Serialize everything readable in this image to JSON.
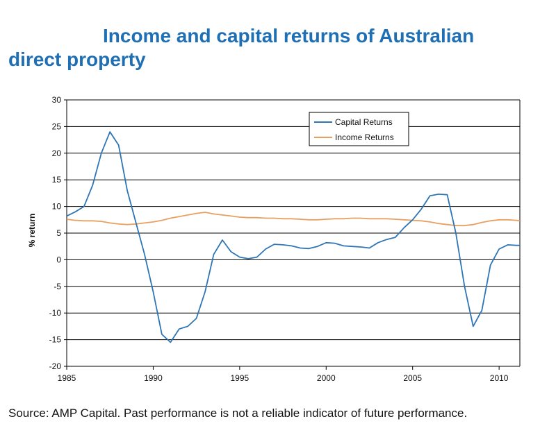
{
  "title_line1": "Income and capital returns of Australian",
  "title_line2": "direct property",
  "source": "Source: AMP Capital. Past performance is not a reliable indicator of future performance.",
  "colors": {
    "title": "#1f6fb5",
    "capital": "#2e75b6",
    "income": "#e8a060"
  },
  "chart_data": {
    "type": "line",
    "ylabel": "% return",
    "xlim": [
      1985,
      2011.2
    ],
    "ylim": [
      -20,
      30
    ],
    "y_ticks": [
      "30",
      "25",
      "20",
      "15",
      "10",
      "5",
      "0",
      "-5",
      "-10",
      "-15",
      "-20"
    ],
    "x_ticks": [
      "1985",
      "1990",
      "1995",
      "2000",
      "2005",
      "2010"
    ],
    "grid": "horizontal",
    "legend_position": "top-right",
    "series": [
      {
        "name": "Capital Returns",
        "color": "#2e75b6",
        "points": [
          [
            1985,
            8.2
          ],
          [
            1985.5,
            9
          ],
          [
            1986,
            10
          ],
          [
            1986.5,
            14
          ],
          [
            1987,
            20
          ],
          [
            1987.5,
            24
          ],
          [
            1988,
            21.5
          ],
          [
            1988.5,
            13
          ],
          [
            1989,
            7
          ],
          [
            1989.5,
            1
          ],
          [
            1990,
            -6
          ],
          [
            1990.5,
            -14
          ],
          [
            1991,
            -15.5
          ],
          [
            1991.5,
            -13
          ],
          [
            1992,
            -12.5
          ],
          [
            1992.5,
            -11
          ],
          [
            1993,
            -6
          ],
          [
            1993.5,
            1
          ],
          [
            1994,
            3.7
          ],
          [
            1994.5,
            1.5
          ],
          [
            1995,
            0.5
          ],
          [
            1995.5,
            0.2
          ],
          [
            1996,
            0.5
          ],
          [
            1996.5,
            2
          ],
          [
            1997,
            2.9
          ],
          [
            1997.5,
            2.8
          ],
          [
            1998,
            2.6
          ],
          [
            1998.5,
            2.2
          ],
          [
            1999,
            2.1
          ],
          [
            1999.5,
            2.5
          ],
          [
            2000,
            3.2
          ],
          [
            2000.5,
            3.1
          ],
          [
            2001,
            2.6
          ],
          [
            2001.5,
            2.5
          ],
          [
            2002,
            2.4
          ],
          [
            2002.5,
            2.2
          ],
          [
            2003,
            3.2
          ],
          [
            2003.5,
            3.8
          ],
          [
            2004,
            4.2
          ],
          [
            2004.5,
            6
          ],
          [
            2005,
            7.5
          ],
          [
            2005.5,
            9.5
          ],
          [
            2006,
            12
          ],
          [
            2006.5,
            12.3
          ],
          [
            2007,
            12.2
          ],
          [
            2007.5,
            5
          ],
          [
            2008,
            -5
          ],
          [
            2008.5,
            -12.5
          ],
          [
            2009,
            -9.5
          ],
          [
            2009.5,
            -1
          ],
          [
            2010,
            2
          ],
          [
            2010.5,
            2.8
          ],
          [
            2011,
            2.7
          ],
          [
            2011.2,
            2.7
          ]
        ]
      },
      {
        "name": "Income Returns",
        "color": "#e8a060",
        "points": [
          [
            1985,
            7.6
          ],
          [
            1985.5,
            7.4
          ],
          [
            1986,
            7.3
          ],
          [
            1986.5,
            7.3
          ],
          [
            1987,
            7.2
          ],
          [
            1987.5,
            6.9
          ],
          [
            1988,
            6.7
          ],
          [
            1988.5,
            6.6
          ],
          [
            1989,
            6.7
          ],
          [
            1989.5,
            6.9
          ],
          [
            1990,
            7.1
          ],
          [
            1990.5,
            7.4
          ],
          [
            1991,
            7.8
          ],
          [
            1991.5,
            8.1
          ],
          [
            1992,
            8.4
          ],
          [
            1992.5,
            8.7
          ],
          [
            1993,
            8.9
          ],
          [
            1993.5,
            8.6
          ],
          [
            1994,
            8.4
          ],
          [
            1994.5,
            8.2
          ],
          [
            1995,
            8.0
          ],
          [
            1995.5,
            7.9
          ],
          [
            1996,
            7.9
          ],
          [
            1996.5,
            7.8
          ],
          [
            1997,
            7.8
          ],
          [
            1997.5,
            7.7
          ],
          [
            1998,
            7.7
          ],
          [
            1998.5,
            7.6
          ],
          [
            1999,
            7.5
          ],
          [
            1999.5,
            7.5
          ],
          [
            2000,
            7.6
          ],
          [
            2000.5,
            7.7
          ],
          [
            2001,
            7.7
          ],
          [
            2001.5,
            7.8
          ],
          [
            2002,
            7.8
          ],
          [
            2002.5,
            7.7
          ],
          [
            2003,
            7.7
          ],
          [
            2003.5,
            7.7
          ],
          [
            2004,
            7.6
          ],
          [
            2004.5,
            7.5
          ],
          [
            2005,
            7.4
          ],
          [
            2005.5,
            7.3
          ],
          [
            2006,
            7.1
          ],
          [
            2006.5,
            6.8
          ],
          [
            2007,
            6.6
          ],
          [
            2007.5,
            6.4
          ],
          [
            2008,
            6.4
          ],
          [
            2008.5,
            6.6
          ],
          [
            2009,
            7.0
          ],
          [
            2009.5,
            7.3
          ],
          [
            2010,
            7.5
          ],
          [
            2010.5,
            7.5
          ],
          [
            2011,
            7.4
          ],
          [
            2011.2,
            7.3
          ]
        ]
      }
    ]
  }
}
